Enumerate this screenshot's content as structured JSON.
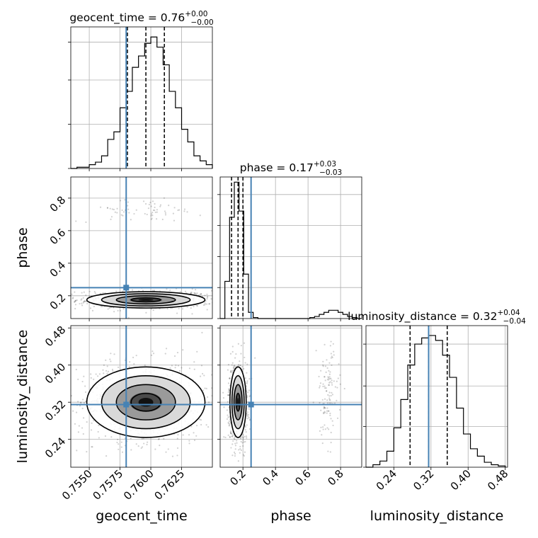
{
  "colors": {
    "truth": "#4682b4",
    "contour": "#000000",
    "hist": "#000000",
    "scatter": "#000000",
    "grid": "#b0b0b0"
  },
  "chart_data": {
    "type": "corner",
    "grid": true,
    "parameters": [
      {
        "name": "geocent_time",
        "axis_label": "geocent_time",
        "range": [
          0.7535,
          0.765
        ],
        "ticks": [
          0.755,
          0.7575,
          0.76,
          0.7625
        ],
        "tick_labels": [
          "0.7550",
          "0.7575",
          "0.7600",
          "0.7625"
        ],
        "truth": 0.758,
        "title": {
          "label": "geocent_time = 0.76",
          "plus": "+0.00",
          "minus": "−0.00"
        },
        "quantiles": [
          0.7581,
          0.7596,
          0.7611
        ],
        "hist_bins": [
          0.7535,
          0.754,
          0.7545,
          0.755,
          0.7555,
          0.756,
          0.7565,
          0.757,
          0.7575,
          0.758,
          0.7585,
          0.759,
          0.7595,
          0.76,
          0.7605,
          0.761,
          0.7615,
          0.762,
          0.7625,
          0.763,
          0.7635,
          0.764,
          0.7645,
          0.765
        ],
        "hist_counts": [
          0,
          1,
          1,
          3,
          5,
          10,
          23,
          29,
          48,
          61,
          80,
          89,
          99,
          104,
          96,
          82,
          61,
          48,
          31,
          21,
          10,
          6,
          3
        ],
        "hist_ymax": 112,
        "hist_ticks": [
          0,
          35,
          70,
          100
        ]
      },
      {
        "name": "phase",
        "axis_label": "phase",
        "range": [
          0.06,
          0.93
        ],
        "ticks": [
          0.2,
          0.4,
          0.6,
          0.8
        ],
        "tick_labels": [
          "0.2",
          "0.4",
          "0.6",
          "0.8"
        ],
        "truth": 0.25,
        "title": {
          "label": "phase = 0.17",
          "plus": "+0.03",
          "minus": "−0.03"
        },
        "quantiles": [
          0.13,
          0.17,
          0.2
        ],
        "hist_bins": [
          0.06,
          0.089,
          0.118,
          0.147,
          0.176,
          0.205,
          0.234,
          0.263,
          0.292,
          0.321,
          0.35,
          0.379,
          0.408,
          0.437,
          0.466,
          0.495,
          0.524,
          0.553,
          0.582,
          0.611,
          0.64,
          0.669,
          0.698,
          0.727,
          0.756,
          0.785,
          0.814,
          0.843,
          0.872,
          0.901,
          0.93
        ],
        "hist_counts": [
          0,
          36,
          98,
          132,
          104,
          43,
          6,
          1,
          0,
          0,
          0,
          0,
          0,
          0,
          0,
          0,
          0,
          0,
          0,
          1,
          2,
          4,
          6,
          8,
          8,
          6,
          4,
          2,
          1,
          0
        ],
        "hist_ymax": 137,
        "hist_ticks": [
          0,
          30,
          60,
          90,
          120
        ]
      },
      {
        "name": "luminosity_distance",
        "axis_label": "luminosity_distance",
        "range": [
          0.18,
          0.485
        ],
        "ticks": [
          0.24,
          0.32,
          0.4,
          0.48
        ],
        "tick_labels": [
          "0.24",
          "0.32",
          "0.40",
          "0.48"
        ],
        "truth": 0.315,
        "title": {
          "label": "luminosity_distance = 0.32",
          "plus": "+0.04",
          "minus": "−0.04"
        },
        "quantiles": [
          0.275,
          0.315,
          0.355
        ],
        "hist_bins": [
          0.18,
          0.195,
          0.21,
          0.225,
          0.24,
          0.255,
          0.27,
          0.285,
          0.3,
          0.315,
          0.33,
          0.345,
          0.36,
          0.375,
          0.39,
          0.405,
          0.42,
          0.435,
          0.45,
          0.465,
          0.48
        ],
        "hist_counts": [
          0,
          2,
          5,
          13,
          32,
          55,
          83,
          100,
          105,
          107,
          103,
          91,
          73,
          48,
          27,
          15,
          9,
          4,
          2,
          1
        ],
        "hist_ymax": 115,
        "hist_ticks": [
          0,
          33,
          66,
          100
        ]
      }
    ],
    "pairs": [
      {
        "x": "geocent_time",
        "y": "phase",
        "modes": [
          {
            "cx": 0.7596,
            "cy": 0.175,
            "sx": 0.0024,
            "sy": 0.025,
            "n": 700
          },
          {
            "cx": 0.7592,
            "cy": 0.725,
            "sx": 0.0022,
            "sy": 0.03,
            "n": 70
          }
        ],
        "density_peak": {
          "x": 0.7596,
          "y": 0.175
        },
        "contour_levels": [
          0.5,
          1.0,
          1.5,
          2.0
        ]
      },
      {
        "x": "geocent_time",
        "y": "luminosity_distance",
        "modes": [
          {
            "cx": 0.7596,
            "cy": 0.32,
            "sx": 0.0024,
            "sy": 0.038,
            "n": 900
          }
        ],
        "density_peak": {
          "x": 0.7596,
          "y": 0.32
        },
        "contour_levels": [
          0.5,
          1.0,
          1.5,
          2.0
        ]
      },
      {
        "x": "phase",
        "y": "luminosity_distance",
        "modes": [
          {
            "cx": 0.17,
            "cy": 0.32,
            "sx": 0.025,
            "sy": 0.038,
            "n": 800
          },
          {
            "cx": 0.72,
            "cy": 0.34,
            "sx": 0.03,
            "sy": 0.045,
            "n": 120
          }
        ],
        "density_peak": {
          "x": 0.17,
          "y": 0.32
        },
        "contour_levels": [
          0.5,
          1.0,
          1.5,
          2.0
        ]
      }
    ]
  }
}
